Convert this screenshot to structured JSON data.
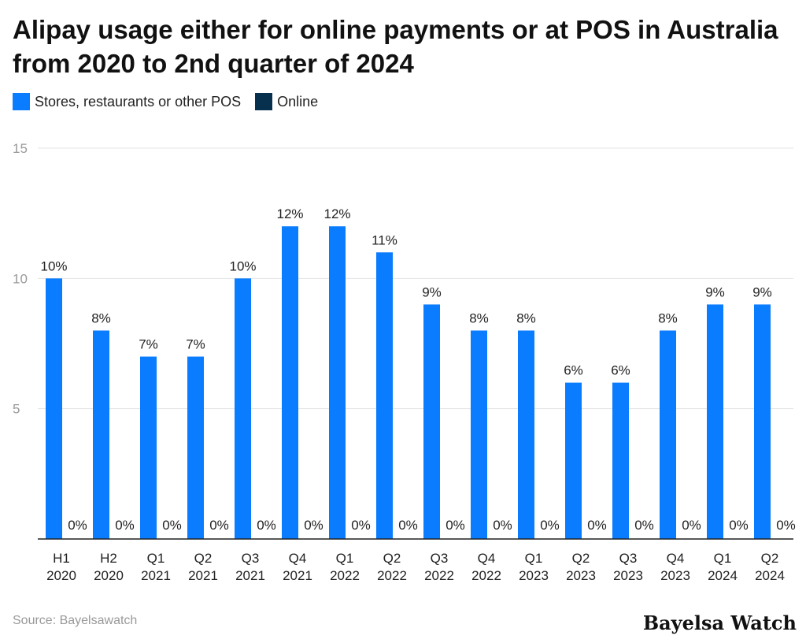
{
  "title": "Alipay usage either for online payments or at POS in Australia from 2020 to 2nd quarter of 2024",
  "legend": [
    {
      "label": "Stores, restaurants or other POS",
      "color": "#0a7cff"
    },
    {
      "label": "Online",
      "color": "#07304f"
    }
  ],
  "source": "Source: Bayelsawatch",
  "brand": "Bayelsa Watch",
  "chart_data": {
    "type": "bar",
    "categories": [
      [
        "H1",
        "2020"
      ],
      [
        "H2",
        "2020"
      ],
      [
        "Q1",
        "2021"
      ],
      [
        "Q2",
        "2021"
      ],
      [
        "Q3",
        "2021"
      ],
      [
        "Q4",
        "2021"
      ],
      [
        "Q1",
        "2022"
      ],
      [
        "Q2",
        "2022"
      ],
      [
        "Q3",
        "2022"
      ],
      [
        "Q4",
        "2022"
      ],
      [
        "Q1",
        "2023"
      ],
      [
        "Q2",
        "2023"
      ],
      [
        "Q3",
        "2023"
      ],
      [
        "Q4",
        "2023"
      ],
      [
        "Q1",
        "2024"
      ],
      [
        "Q2",
        "2024"
      ]
    ],
    "series": [
      {
        "name": "Stores, restaurants or other POS",
        "color": "#0a7cff",
        "values": [
          10,
          8,
          7,
          7,
          10,
          12,
          12,
          11,
          9,
          8,
          8,
          6,
          6,
          8,
          9,
          9
        ]
      },
      {
        "name": "Online",
        "color": "#07304f",
        "values": [
          0,
          0,
          0,
          0,
          0,
          0,
          0,
          0,
          0,
          0,
          0,
          0,
          0,
          0,
          0,
          0
        ]
      }
    ],
    "value_suffix": "%",
    "yticks": [
      5,
      10,
      15
    ],
    "ylim": [
      0,
      15
    ],
    "grid": true,
    "legend_position": "top-left"
  }
}
